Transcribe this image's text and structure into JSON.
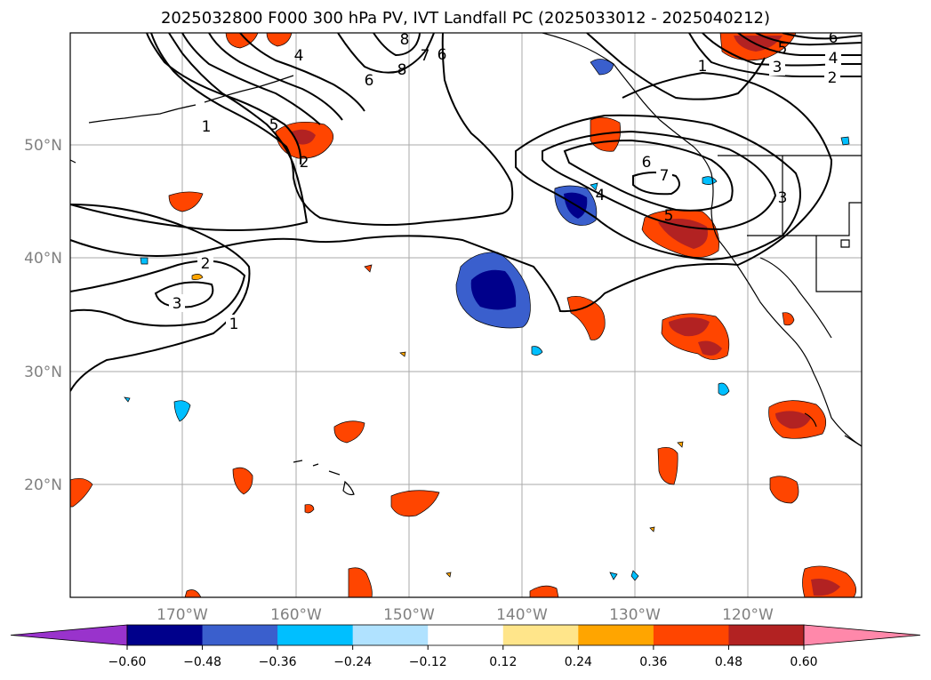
{
  "title": "2025032800 F000 300 hPa PV, IVT Landfall PC (2025033012 - 2025040212)",
  "map": {
    "lon_labels": [
      "170°W",
      "160°W",
      "150°W",
      "140°W",
      "130°W",
      "120°W"
    ],
    "lat_labels": [
      "50°N",
      "40°N",
      "30°N",
      "20°N"
    ],
    "contour_labels": [
      "1",
      "2",
      "3",
      "4",
      "5",
      "6",
      "7",
      "8"
    ]
  },
  "colorbar": {
    "ticks": [
      "−0.60",
      "−0.48",
      "−0.36",
      "−0.24",
      "−0.12",
      "0.12",
      "0.24",
      "0.36",
      "0.48",
      "0.60"
    ],
    "colors": [
      "#9933cc",
      "#00008b",
      "#3a5fcd",
      "#00bfff",
      "#b0e2ff",
      "#ffffff",
      "#ffe58a",
      "#ffa500",
      "#ff4500",
      "#b22222",
      "#ff88aa"
    ]
  }
}
